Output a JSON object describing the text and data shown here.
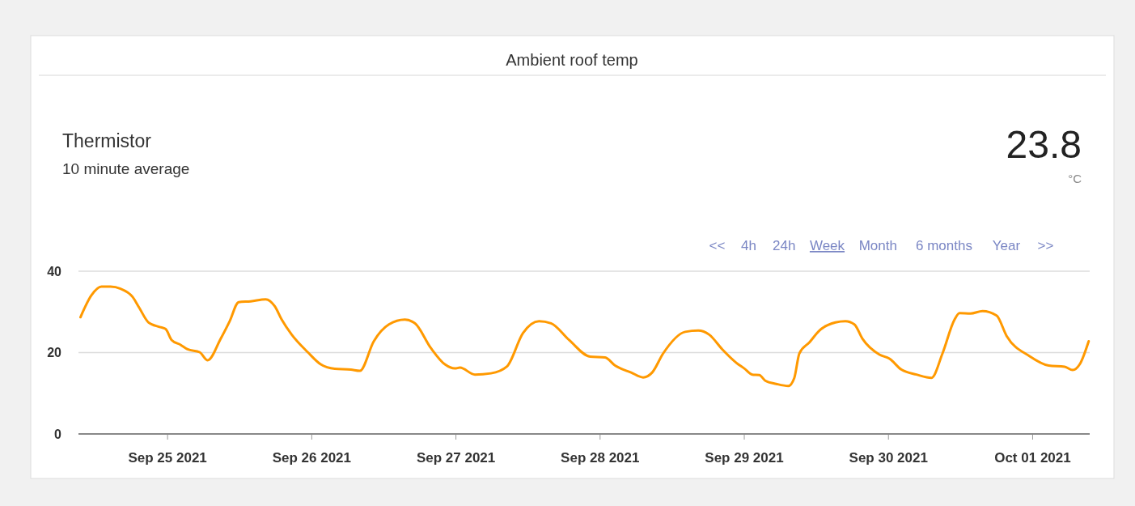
{
  "chart_data": {
    "type": "line",
    "title": "Ambient roof temp",
    "subtitle": "Thermistor",
    "annotations": [
      "10 minute average",
      "23.8",
      "°C",
      "<<",
      "4h",
      "24h",
      "Week",
      "Month",
      "6 months",
      "Year",
      ">>"
    ],
    "x": [
      "2021-09-24T09:30",
      "2021-09-24T11:20",
      "2021-09-24T13:00",
      "2021-09-24T14:30",
      "2021-09-24T16:10",
      "2021-09-24T18:10",
      "2021-09-24T19:15",
      "2021-09-24T20:50",
      "2021-09-24T22:40",
      "2021-09-24T23:40",
      "2021-09-25T00:40",
      "2021-09-25T02:10",
      "2021-09-25T03:20",
      "2021-09-25T05:20",
      "2021-09-25T06:40",
      "2021-09-25T08:50",
      "2021-09-25T10:20",
      "2021-09-25T11:50",
      "2021-09-25T13:50",
      "2021-09-25T16:20",
      "2021-09-25T17:50",
      "2021-09-25T19:00",
      "2021-09-25T20:40",
      "2021-09-25T23:20",
      "2021-09-26T01:30",
      "2021-09-26T03:50",
      "2021-09-26T06:30",
      "2021-09-26T08:00",
      "2021-09-26T10:20",
      "2021-09-26T12:50",
      "2021-09-26T15:30",
      "2021-09-26T17:10",
      "2021-09-26T19:50",
      "2021-09-26T22:10",
      "2021-09-26T23:50",
      "2021-09-27T00:40",
      "2021-09-27T03:10",
      "2021-09-27T05:50",
      "2021-09-27T08:30",
      "2021-09-27T11:10",
      "2021-09-27T13:50",
      "2021-09-27T15:50",
      "2021-09-27T18:50",
      "2021-09-27T22:20",
      "2021-09-28T00:50",
      "2021-09-28T02:30",
      "2021-09-28T05:10",
      "2021-09-28T07:10",
      "2021-09-28T08:40",
      "2021-09-28T10:30",
      "2021-09-28T14:10",
      "2021-09-28T16:20",
      "2021-09-28T18:10",
      "2021-09-28T20:20",
      "2021-09-28T22:40",
      "2021-09-29T00:00",
      "2021-09-29T01:20",
      "2021-09-29T02:30",
      "2021-09-29T03:30",
      "2021-09-29T05:20",
      "2021-09-29T07:20",
      "2021-09-29T08:20",
      "2021-09-29T09:10",
      "2021-09-29T10:50",
      "2021-09-29T12:30",
      "2021-09-29T15:10",
      "2021-09-29T16:50",
      "2021-09-29T18:20",
      "2021-09-29T19:40",
      "2021-09-29T22:30",
      "2021-09-30T00:10",
      "2021-09-30T02:10",
      "2021-09-30T04:40",
      "2021-09-30T07:10",
      "2021-09-30T09:00",
      "2021-09-30T11:00",
      "2021-09-30T11:50",
      "2021-09-30T13:40",
      "2021-09-30T15:40",
      "2021-09-30T18:00",
      "2021-09-30T19:40",
      "2021-09-30T23:30",
      "2021-10-01T02:40",
      "2021-10-01T05:20",
      "2021-10-01T06:40",
      "2021-10-01T07:50",
      "2021-10-01T09:20"
    ],
    "series": [
      {
        "color": "#ff9900",
        "values": [
          28.7,
          34.1,
          36.2,
          36.2,
          35.7,
          33.7,
          31.1,
          27.4,
          26.3,
          25.8,
          23.1,
          21.9,
          20.8,
          20.1,
          18.1,
          23.4,
          27.7,
          32.4,
          32.6,
          33.1,
          31.4,
          28.1,
          24.4,
          20.1,
          17.1,
          16.0,
          15.8,
          15.5,
          22.8,
          26.9,
          28.1,
          27.2,
          21.1,
          17.1,
          16.1,
          16.3,
          14.6,
          14.9,
          16.6,
          24.8,
          27.7,
          27.2,
          23.1,
          19.0,
          18.8,
          16.8,
          15.1,
          13.9,
          15.1,
          19.8,
          25.1,
          25.4,
          24.4,
          20.8,
          17.5,
          16.1,
          14.6,
          14.5,
          13.1,
          12.3,
          11.8,
          13.8,
          19.8,
          22.5,
          25.4,
          27.4,
          27.7,
          26.9,
          23.4,
          19.5,
          18.5,
          15.8,
          14.6,
          13.8,
          19.8,
          28.1,
          29.7,
          29.6,
          30.2,
          29.1,
          24.1,
          19.1,
          16.8,
          16.5,
          15.7,
          17.1,
          22.8
        ]
      }
    ],
    "xlim": [
      "2021-09-24T09:10",
      "2021-10-01T09:30"
    ],
    "xticks": [
      {
        "value": "2021-09-25",
        "label": "Sep 25 2021"
      },
      {
        "value": "2021-09-26",
        "label": "Sep 26 2021"
      },
      {
        "value": "2021-09-27",
        "label": "Sep 27 2021"
      },
      {
        "value": "2021-09-28",
        "label": "Sep 28 2021"
      },
      {
        "value": "2021-09-29",
        "label": "Sep 29 2021"
      },
      {
        "value": "2021-09-30",
        "label": "Sep 30 2021"
      },
      {
        "value": "2021-10-01",
        "label": "Oct 01 2021"
      }
    ],
    "ylim": [
      0,
      40
    ],
    "yticks": [
      0,
      20,
      40
    ],
    "grid": "y",
    "marker": "none",
    "line_style": "solid"
  }
}
